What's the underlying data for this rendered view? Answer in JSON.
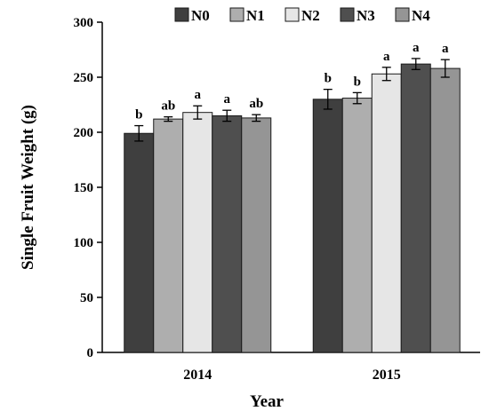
{
  "chart_data": {
    "type": "bar",
    "title": "",
    "xlabel": "Year",
    "ylabel": "Single Fruit Weight (g)",
    "ylim": [
      0,
      300
    ],
    "yticks": [
      "0",
      "50",
      "100",
      "150",
      "200",
      "250",
      "300"
    ],
    "categories": [
      "2014",
      "2015"
    ],
    "legend_position": "top",
    "grid": false,
    "series": [
      {
        "name": "N0",
        "color": "#3f3f3f",
        "values": [
          199,
          230
        ],
        "errors": [
          7,
          9
        ],
        "labels": [
          "b",
          "b"
        ]
      },
      {
        "name": "N1",
        "color": "#aeaeae",
        "values": [
          212,
          231
        ],
        "errors": [
          2,
          5
        ],
        "labels": [
          "ab",
          "b"
        ]
      },
      {
        "name": "N2",
        "color": "#e6e6e6",
        "values": [
          218,
          253
        ],
        "errors": [
          6,
          6
        ],
        "labels": [
          "a",
          "a"
        ]
      },
      {
        "name": "N3",
        "color": "#4f4f4f",
        "values": [
          215,
          262
        ],
        "errors": [
          5,
          5
        ],
        "labels": [
          "a",
          "a"
        ]
      },
      {
        "name": "N4",
        "color": "#959595",
        "values": [
          213,
          258
        ],
        "errors": [
          3,
          8
        ],
        "labels": [
          "ab",
          "a"
        ]
      }
    ]
  }
}
